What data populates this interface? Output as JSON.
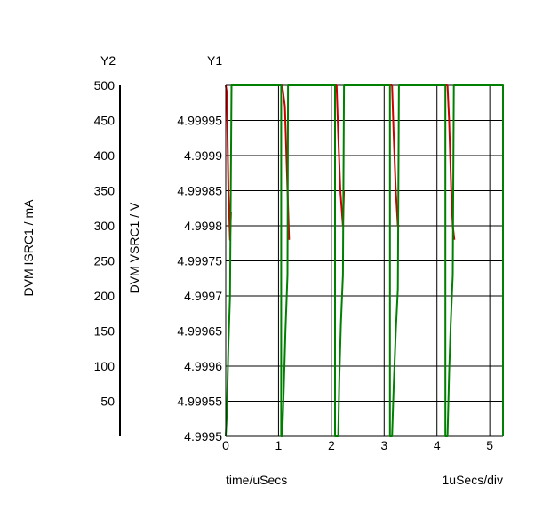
{
  "chart_data": {
    "type": "line",
    "labels": {
      "y2_axis_tag": "Y2",
      "y1_axis_tag": "Y1",
      "y2_label": "DVM ISRC1 / mA",
      "y1_label": "DVM VSRC1 / V",
      "xlabel": "time/uSecs",
      "xscale": "1uSecs/div"
    },
    "x_ticks": [
      0,
      1,
      2,
      3,
      4,
      5
    ],
    "xlim": [
      0,
      5.25
    ],
    "y1_ticks": [
      "4.9995",
      "4.99955",
      "4.9996",
      "4.99965",
      "4.9997",
      "4.99975",
      "4.9998",
      "4.99985",
      "4.9999",
      "4.99995"
    ],
    "y1lim": [
      4.9995,
      5.0
    ],
    "y2_ticks": [
      "50",
      "100",
      "150",
      "200",
      "250",
      "300",
      "350",
      "400",
      "450",
      "500"
    ],
    "y2lim": [
      0,
      500
    ],
    "grid": true,
    "series": [
      {
        "axis": "y1",
        "color": "#cc0000",
        "segments": [
          [
            [
              0.0,
              5.0
            ],
            [
              0.02,
              4.99999
            ],
            [
              0.05,
              4.99985
            ],
            [
              0.08,
              4.99978
            ],
            [
              0.1,
              4.99982
            ]
          ],
          [
            [
              1.07,
              5.0
            ],
            [
              1.12,
              4.99997
            ],
            [
              1.15,
              4.9999
            ],
            [
              1.2,
              4.99978
            ]
          ],
          [
            [
              2.1,
              5.0
            ],
            [
              2.13,
              4.99993
            ],
            [
              2.17,
              4.99985
            ],
            [
              2.22,
              4.9998
            ],
            [
              2.24,
              4.99985
            ]
          ],
          [
            [
              3.15,
              5.0
            ],
            [
              3.18,
              4.99993
            ],
            [
              3.22,
              4.99985
            ],
            [
              3.26,
              4.9998
            ],
            [
              3.29,
              4.9998
            ]
          ],
          [
            [
              4.2,
              5.0
            ],
            [
              4.23,
              4.99995
            ],
            [
              4.27,
              4.99985
            ],
            [
              4.3,
              4.9998
            ],
            [
              4.33,
              4.99978
            ]
          ],
          [
            [
              0.1,
              5.0
            ],
            [
              1.07,
              5.0
            ]
          ],
          [
            [
              1.2,
              5.0
            ],
            [
              2.1,
              5.0
            ]
          ],
          [
            [
              2.24,
              5.0
            ],
            [
              3.15,
              5.0
            ]
          ],
          [
            [
              3.29,
              5.0
            ],
            [
              4.2,
              5.0
            ]
          ],
          [
            [
              4.33,
              5.0
            ],
            [
              5.25,
              5.0
            ]
          ]
        ]
      },
      {
        "axis": "y2",
        "color": "#008000",
        "segments": [
          [
            [
              0.0,
              0
            ],
            [
              0.02,
              30
            ],
            [
              0.05,
              130
            ],
            [
              0.08,
              200
            ],
            [
              0.11,
              500
            ],
            [
              1.05,
              500
            ],
            [
              1.05,
              0
            ],
            [
              1.07,
              0
            ],
            [
              1.1,
              70
            ],
            [
              1.13,
              150
            ],
            [
              1.17,
              230
            ],
            [
              1.18,
              500
            ],
            [
              2.07,
              500
            ],
            [
              2.07,
              0
            ],
            [
              2.13,
              0
            ],
            [
              2.15,
              80
            ],
            [
              2.18,
              160
            ],
            [
              2.22,
              230
            ],
            [
              2.24,
              500
            ],
            [
              3.11,
              500
            ],
            [
              3.11,
              0
            ],
            [
              3.15,
              0
            ],
            [
              3.18,
              70
            ],
            [
              3.22,
              150
            ],
            [
              3.26,
              210
            ],
            [
              3.28,
              500
            ],
            [
              4.16,
              500
            ],
            [
              4.16,
              0
            ],
            [
              4.2,
              0
            ],
            [
              4.23,
              90
            ],
            [
              4.26,
              160
            ],
            [
              4.3,
              230
            ],
            [
              4.32,
              500
            ],
            [
              5.25,
              500
            ],
            [
              5.25,
              0
            ]
          ]
        ]
      }
    ]
  }
}
